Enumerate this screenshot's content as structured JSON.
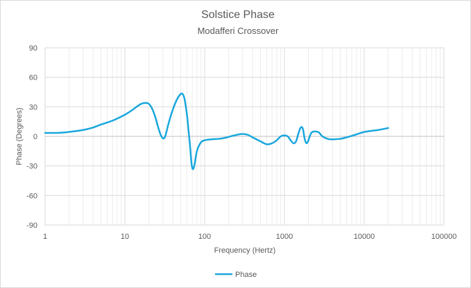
{
  "chart_data": {
    "type": "line",
    "title": "Solstice Phase",
    "subtitle": "Modafferi Crossover",
    "xlabel": "Frequency (Hertz)",
    "ylabel": "Phase (Degrees)",
    "x_scale": "log",
    "xlim": [
      1,
      100000
    ],
    "ylim": [
      -90,
      90
    ],
    "x_ticks": [
      1,
      10,
      100,
      1000,
      10000,
      100000
    ],
    "x_tick_labels": [
      "1",
      "10",
      "100",
      "1000",
      "10000",
      "100000"
    ],
    "y_ticks": [
      90,
      60,
      30,
      0,
      -30,
      -60,
      -90
    ],
    "y_tick_labels": [
      "90",
      "60",
      "30",
      "0",
      "-30",
      "-60",
      "-90"
    ],
    "grid": true,
    "legend": "bottom",
    "series": [
      {
        "name": "Phase",
        "color": "#1aa7dd",
        "x": [
          1,
          1.5,
          2,
          3,
          4,
          5,
          7,
          10,
          12,
          14,
          16,
          18,
          20,
          22,
          24,
          26,
          28,
          30,
          32,
          35,
          38,
          42,
          46,
          50,
          53,
          56,
          60,
          63,
          66,
          68,
          70,
          72,
          75,
          80,
          90,
          100,
          120,
          150,
          180,
          200,
          250,
          300,
          350,
          400,
          500,
          600,
          700,
          800,
          900,
          1000,
          1100,
          1200,
          1300,
          1400,
          1500,
          1600,
          1700,
          1800,
          1900,
          2000,
          2100,
          2200,
          2400,
          2700,
          3000,
          3500,
          4000,
          5000,
          6000,
          8000,
          10000,
          15000,
          20000
        ],
        "y": [
          3.5,
          3.6,
          4.5,
          6.5,
          9,
          12,
          16,
          22,
          26,
          30,
          33,
          34,
          33,
          28,
          20,
          10,
          2,
          -2,
          0,
          12,
          22,
          32,
          39,
          43,
          43,
          38,
          22,
          5,
          -12,
          -25,
          -32,
          -33,
          -28,
          -15,
          -6,
          -4,
          -3,
          -2.5,
          -1.5,
          -0.5,
          1.5,
          2.5,
          1.5,
          -1,
          -5,
          -8,
          -7,
          -4,
          0,
          1,
          0,
          -4,
          -7,
          -5,
          3,
          9,
          8,
          -3,
          -7,
          -4,
          1,
          4,
          5,
          4,
          0,
          -2.5,
          -3,
          -2.5,
          -1,
          2,
          4.5,
          6.5,
          8.5
        ]
      }
    ]
  }
}
